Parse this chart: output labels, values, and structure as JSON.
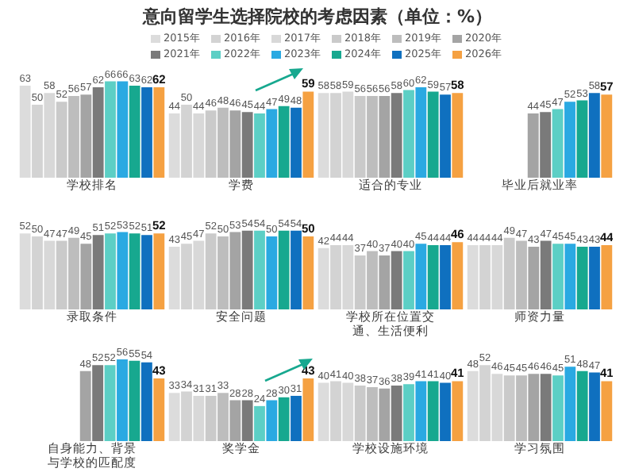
{
  "chart_data": [
    {
      "type": "other",
      "title": "意向留学生选择院校的考虑因素（单位：%）"
    },
    {
      "type": "bar",
      "legend": "top",
      "data_labels": true,
      "xlabel": "学校排名",
      "categories": [
        null
      ],
      "series": [
        {
          "name": "2015年",
          "color": "#dcdcdc",
          "values": [
            63
          ]
        },
        {
          "name": "2016年",
          "color": "#d3d3d3",
          "values": [
            50
          ]
        },
        {
          "name": "2017年",
          "color": "#d8d8d8",
          "values": [
            58
          ]
        },
        {
          "name": "2018年",
          "color": "#cacaca",
          "values": [
            52
          ]
        },
        {
          "name": "2019年",
          "color": "#bdbdbd",
          "values": [
            56
          ]
        },
        {
          "name": "2020年",
          "color": "#a4a4a4",
          "values": [
            57
          ]
        },
        {
          "name": "2021年",
          "color": "#7a7a7a",
          "values": [
            62
          ]
        },
        {
          "name": "2022年",
          "color": "#5ccfc5",
          "values": [
            66
          ]
        },
        {
          "name": "2023年",
          "color": "#2aa9e2",
          "values": [
            66
          ]
        },
        {
          "name": "2024年",
          "color": "#17a88f",
          "values": [
            63
          ]
        },
        {
          "name": "2025年",
          "color": "#0f70bf",
          "values": [
            62
          ]
        },
        {
          "name": "2026年",
          "color": "#f5a142",
          "values": [
            62
          ]
        }
      ]
    },
    {
      "type": "bar",
      "data_labels": true,
      "xlabel": "学费",
      "categories": [
        null
      ],
      "series": [
        {
          "color": "#dcdcdc",
          "values": [
            44
          ]
        },
        {
          "color": "#d3d3d3",
          "values": [
            50
          ]
        },
        {
          "color": "#d8d8d8",
          "values": [
            44
          ]
        },
        {
          "color": "#cacaca",
          "values": [
            46
          ]
        },
        {
          "color": "#bdbdbd",
          "values": [
            48
          ]
        },
        {
          "color": "#a4a4a4",
          "values": [
            46
          ]
        },
        {
          "color": "#7a7a7a",
          "values": [
            45
          ]
        },
        {
          "color": "#5ccfc5",
          "values": [
            44
          ]
        },
        {
          "color": "#2aa9e2",
          "values": [
            47
          ]
        },
        {
          "color": "#17a88f",
          "values": [
            49
          ]
        },
        {
          "color": "#0f70bf",
          "values": [
            48
          ]
        },
        {
          "color": "#f5a142",
          "values": [
            59
          ]
        }
      ]
    },
    {
      "type": "bar",
      "data_labels": true,
      "xlabel": "适合的专业",
      "categories": [
        null
      ],
      "series": [
        {
          "color": "#dcdcdc",
          "values": [
            58
          ]
        },
        {
          "color": "#d3d3d3",
          "values": [
            58
          ]
        },
        {
          "color": "#d8d8d8",
          "values": [
            59
          ]
        },
        {
          "color": "#cacaca",
          "values": [
            56
          ]
        },
        {
          "color": "#bdbdbd",
          "values": [
            56
          ]
        },
        {
          "color": "#a4a4a4",
          "values": [
            56
          ]
        },
        {
          "color": "#7a7a7a",
          "values": [
            58
          ]
        },
        {
          "color": "#5ccfc5",
          "values": [
            60
          ]
        },
        {
          "color": "#2aa9e2",
          "values": [
            62
          ]
        },
        {
          "color": "#17a88f",
          "values": [
            59
          ]
        },
        {
          "color": "#0f70bf",
          "values": [
            57
          ]
        },
        {
          "color": "#f5a142",
          "values": [
            58
          ]
        }
      ]
    },
    {
      "type": "bar",
      "data_labels": true,
      "xlabel": "毕业后就业率",
      "categories": [
        null
      ],
      "series": [
        {
          "color": "#a4a4a4",
          "values": [
            44
          ]
        },
        {
          "color": "#7a7a7a",
          "values": [
            45
          ]
        },
        {
          "color": "#5ccfc5",
          "values": [
            47
          ]
        },
        {
          "color": "#2aa9e2",
          "values": [
            52
          ]
        },
        {
          "color": "#17a88f",
          "values": [
            53
          ]
        },
        {
          "color": "#0f70bf",
          "values": [
            58
          ]
        },
        {
          "color": "#f5a142",
          "values": [
            57
          ]
        }
      ]
    },
    {
      "type": "bar",
      "data_labels": true,
      "xlabel": "录取条件",
      "categories": [
        null
      ],
      "series": [
        {
          "color": "#dcdcdc",
          "values": [
            52
          ]
        },
        {
          "color": "#d3d3d3",
          "values": [
            50
          ]
        },
        {
          "color": "#d8d8d8",
          "values": [
            47
          ]
        },
        {
          "color": "#cacaca",
          "values": [
            47
          ]
        },
        {
          "color": "#bdbdbd",
          "values": [
            49
          ]
        },
        {
          "color": "#a4a4a4",
          "values": [
            45
          ]
        },
        {
          "color": "#7a7a7a",
          "values": [
            51
          ]
        },
        {
          "color": "#5ccfc5",
          "values": [
            52
          ]
        },
        {
          "color": "#2aa9e2",
          "values": [
            53
          ]
        },
        {
          "color": "#17a88f",
          "values": [
            52
          ]
        },
        {
          "color": "#0f70bf",
          "values": [
            51
          ]
        },
        {
          "color": "#f5a142",
          "values": [
            52
          ]
        }
      ]
    },
    {
      "type": "bar",
      "data_labels": true,
      "xlabel": "安全问题",
      "categories": [
        null
      ],
      "series": [
        {
          "color": "#dcdcdc",
          "values": [
            43
          ]
        },
        {
          "color": "#d3d3d3",
          "values": [
            45
          ]
        },
        {
          "color": "#d8d8d8",
          "values": [
            47
          ]
        },
        {
          "color": "#cacaca",
          "values": [
            52
          ]
        },
        {
          "color": "#bdbdbd",
          "values": [
            50
          ]
        },
        {
          "color": "#a4a4a4",
          "values": [
            53
          ]
        },
        {
          "color": "#7a7a7a",
          "values": [
            54
          ]
        },
        {
          "color": "#5ccfc5",
          "values": [
            54
          ]
        },
        {
          "color": "#2aa9e2",
          "values": [
            50
          ]
        },
        {
          "color": "#17a88f",
          "values": [
            54
          ]
        },
        {
          "color": "#0f70bf",
          "values": [
            54
          ]
        },
        {
          "color": "#f5a142",
          "values": [
            50
          ]
        }
      ]
    },
    {
      "type": "bar",
      "data_labels": true,
      "xlabel": "学校所在位置交通、生活便利",
      "categories": [
        null
      ],
      "series": [
        {
          "color": "#dcdcdc",
          "values": [
            42
          ]
        },
        {
          "color": "#d3d3d3",
          "values": [
            44
          ]
        },
        {
          "color": "#d8d8d8",
          "values": [
            44
          ]
        },
        {
          "color": "#cacaca",
          "values": [
            37
          ]
        },
        {
          "color": "#bdbdbd",
          "values": [
            40
          ]
        },
        {
          "color": "#a4a4a4",
          "values": [
            37
          ]
        },
        {
          "color": "#7a7a7a",
          "values": [
            40
          ]
        },
        {
          "color": "#5ccfc5",
          "values": [
            40
          ]
        },
        {
          "color": "#2aa9e2",
          "values": [
            45
          ]
        },
        {
          "color": "#17a88f",
          "values": [
            44
          ]
        },
        {
          "color": "#0f70bf",
          "values": [
            44
          ]
        },
        {
          "color": "#f5a142",
          "values": [
            46
          ]
        }
      ]
    },
    {
      "type": "bar",
      "data_labels": true,
      "xlabel": "师资力量",
      "categories": [
        null
      ],
      "series": [
        {
          "color": "#dcdcdc",
          "values": [
            44
          ]
        },
        {
          "color": "#d3d3d3",
          "values": [
            44
          ]
        },
        {
          "color": "#d8d8d8",
          "values": [
            44
          ]
        },
        {
          "color": "#cacaca",
          "values": [
            49
          ]
        },
        {
          "color": "#bdbdbd",
          "values": [
            47
          ]
        },
        {
          "color": "#a4a4a4",
          "values": [
            43
          ]
        },
        {
          "color": "#7a7a7a",
          "values": [
            47
          ]
        },
        {
          "color": "#5ccfc5",
          "values": [
            45
          ]
        },
        {
          "color": "#2aa9e2",
          "values": [
            45
          ]
        },
        {
          "color": "#17a88f",
          "values": [
            43
          ]
        },
        {
          "color": "#0f70bf",
          "values": [
            43
          ]
        },
        {
          "color": "#f5a142",
          "values": [
            44
          ]
        }
      ]
    },
    {
      "type": "bar",
      "data_labels": true,
      "xlabel": "自身能力、背景与学校的匹配度",
      "categories": [
        null
      ],
      "series": [
        {
          "color": "#a4a4a4",
          "values": [
            48
          ]
        },
        {
          "color": "#7a7a7a",
          "values": [
            52
          ]
        },
        {
          "color": "#5ccfc5",
          "values": [
            52
          ]
        },
        {
          "color": "#2aa9e2",
          "values": [
            56
          ]
        },
        {
          "color": "#17a88f",
          "values": [
            55
          ]
        },
        {
          "color": "#0f70bf",
          "values": [
            54
          ]
        },
        {
          "color": "#f5a142",
          "values": [
            43
          ]
        }
      ]
    },
    {
      "type": "bar",
      "data_labels": true,
      "xlabel": "奖学金",
      "categories": [
        null
      ],
      "series": [
        {
          "color": "#dcdcdc",
          "values": [
            33
          ]
        },
        {
          "color": "#d3d3d3",
          "values": [
            34
          ]
        },
        {
          "color": "#d8d8d8",
          "values": [
            31
          ]
        },
        {
          "color": "#cacaca",
          "values": [
            31
          ]
        },
        {
          "color": "#bdbdbd",
          "values": [
            33
          ]
        },
        {
          "color": "#a4a4a4",
          "values": [
            28
          ]
        },
        {
          "color": "#7a7a7a",
          "values": [
            28
          ]
        },
        {
          "color": "#5ccfc5",
          "values": [
            24
          ]
        },
        {
          "color": "#2aa9e2",
          "values": [
            28
          ]
        },
        {
          "color": "#17a88f",
          "values": [
            30
          ]
        },
        {
          "color": "#0f70bf",
          "values": [
            31
          ]
        },
        {
          "color": "#f5a142",
          "values": [
            43
          ]
        }
      ]
    },
    {
      "type": "bar",
      "data_labels": true,
      "xlabel": "学校设施环境",
      "categories": [
        null
      ],
      "series": [
        {
          "color": "#dcdcdc",
          "values": [
            40
          ]
        },
        {
          "color": "#d3d3d3",
          "values": [
            41
          ]
        },
        {
          "color": "#d8d8d8",
          "values": [
            40
          ]
        },
        {
          "color": "#cacaca",
          "values": [
            38
          ]
        },
        {
          "color": "#bdbdbd",
          "values": [
            37
          ]
        },
        {
          "color": "#a4a4a4",
          "values": [
            36
          ]
        },
        {
          "color": "#7a7a7a",
          "values": [
            38
          ]
        },
        {
          "color": "#5ccfc5",
          "values": [
            39
          ]
        },
        {
          "color": "#2aa9e2",
          "values": [
            41
          ]
        },
        {
          "color": "#17a88f",
          "values": [
            41
          ]
        },
        {
          "color": "#0f70bf",
          "values": [
            40
          ]
        },
        {
          "color": "#f5a142",
          "values": [
            41
          ]
        }
      ]
    },
    {
      "type": "bar",
      "data_labels": true,
      "xlabel": "学习氛围",
      "categories": [
        null
      ],
      "series": [
        {
          "color": "#dcdcdc",
          "values": [
            48
          ]
        },
        {
          "color": "#d3d3d3",
          "values": [
            52
          ]
        },
        {
          "color": "#d8d8d8",
          "values": [
            46
          ]
        },
        {
          "color": "#cacaca",
          "values": [
            45
          ]
        },
        {
          "color": "#bdbdbd",
          "values": [
            45
          ]
        },
        {
          "color": "#a4a4a4",
          "values": [
            46
          ]
        },
        {
          "color": "#7a7a7a",
          "values": [
            46
          ]
        },
        {
          "color": "#5ccfc5",
          "values": [
            45
          ]
        },
        {
          "color": "#2aa9e2",
          "values": [
            51
          ]
        },
        {
          "color": "#17a88f",
          "values": [
            48
          ]
        },
        {
          "color": "#0f70bf",
          "values": [
            47
          ]
        },
        {
          "color": "#f5a142",
          "values": [
            41
          ]
        }
      ]
    }
  ]
}
